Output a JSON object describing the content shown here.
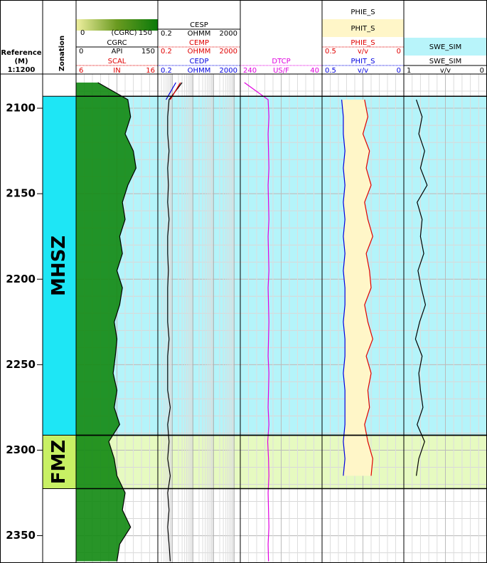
{
  "depth_header": {
    "reference": "Reference",
    "unit": "(M)",
    "scale": "1:1200"
  },
  "zonation_title": "Zonation",
  "depth_range": [
    2080,
    2366
  ],
  "depth_ticks": [
    2100,
    2150,
    2200,
    2250,
    2300,
    2350
  ],
  "zones": [
    {
      "name": "MHSZ",
      "top": 2093,
      "bottom": 2291.25,
      "color": "#1ee6f5",
      "light": "#b4f4fa"
    },
    {
      "name": "FMZ",
      "top": 2291.25,
      "bottom": 2322.5,
      "color": "#c8f064",
      "light": "#e6fac0"
    }
  ],
  "depths": [
    2085,
    2095,
    2105,
    2115,
    2125,
    2135,
    2145,
    2155,
    2165,
    2175,
    2185,
    2195,
    2205,
    2215,
    2225,
    2235,
    2245,
    2255,
    2265,
    2275,
    2285,
    2295,
    2305,
    2315,
    2325,
    2335,
    2345,
    2355,
    2365
  ],
  "tracks": [
    {
      "log": false,
      "colorbar": {
        "left": 0,
        "label": "(CGRC)",
        "right": 150
      },
      "fill_color": "#118811",
      "curves": [
        {
          "name": "CGRC",
          "left": 0,
          "unit": "API",
          "right": 150,
          "color": "#000000",
          "values": [
            40,
            95,
            100,
            90,
            105,
            110,
            95,
            85,
            90,
            80,
            85,
            75,
            85,
            80,
            70,
            75,
            72,
            68,
            75,
            70,
            80,
            60,
            70,
            75,
            90,
            85,
            100,
            80,
            75
          ]
        },
        {
          "name": "SCAL",
          "left": 6,
          "unit": "IN",
          "right": 16,
          "color": "#e00000"
        }
      ]
    },
    {
      "log": true,
      "curves": [
        {
          "name": "CESP",
          "left": 0.2,
          "unit": "OHMM",
          "right": 2000,
          "color": "#000000",
          "values": [
            3,
            0.7,
            0.6,
            0.6,
            0.7,
            0.6,
            0.65,
            0.6,
            0.7,
            0.6,
            0.6,
            0.65,
            0.6,
            0.6,
            0.6,
            0.7,
            0.6,
            0.6,
            0.6,
            0.8,
            0.6,
            0.7,
            0.6,
            0.8,
            0.6,
            0.7,
            0.6,
            0.7,
            0.8
          ]
        },
        {
          "name": "CEMP",
          "left": 0.2,
          "unit": "OHMM",
          "right": 2000,
          "color": "#e00000",
          "values": [
            2.5,
            0.8,
            null,
            null,
            null,
            null,
            null,
            null,
            null,
            null,
            null,
            null,
            null,
            null,
            null,
            null,
            null,
            null,
            null,
            null,
            null,
            null,
            null,
            null,
            null,
            null,
            null,
            null,
            null
          ]
        },
        {
          "name": "CEDP",
          "left": 0.2,
          "unit": "OHMM",
          "right": 2000,
          "color": "#0000e0",
          "values": [
            1.5,
            0.5,
            null,
            null,
            null,
            null,
            null,
            null,
            null,
            null,
            null,
            null,
            null,
            null,
            null,
            null,
            null,
            null,
            null,
            null,
            null,
            null,
            null,
            null,
            null,
            null,
            null,
            null,
            null
          ]
        }
      ]
    },
    {
      "log": false,
      "curves": [
        {
          "name": "DTCP",
          "left": 240,
          "unit": "US/F",
          "right": 40,
          "color": "#e000e0",
          "values": [
            230,
            172,
            170,
            172,
            171,
            170,
            172,
            171,
            170,
            172,
            171,
            170,
            172,
            171,
            170,
            171,
            172,
            170,
            171,
            172,
            170,
            173,
            171,
            170,
            172,
            171,
            170,
            172,
            171
          ]
        }
      ]
    },
    {
      "log": false,
      "legend": [
        "PHIE_S",
        "PHIT_S"
      ],
      "fill_color": "#fff6c8",
      "curves": [
        {
          "name": "PHIE_S",
          "left": 0.5,
          "unit": "v/v",
          "right": 0,
          "color": "#e00000",
          "values": [
            null,
            0.24,
            0.22,
            0.25,
            0.21,
            0.23,
            0.2,
            0.24,
            0.22,
            0.19,
            0.23,
            0.21,
            0.2,
            0.24,
            0.22,
            0.19,
            0.23,
            0.2,
            0.22,
            0.21,
            0.24,
            0.22,
            0.19,
            0.2,
            null,
            null,
            null,
            null,
            null
          ]
        },
        {
          "name": "PHIT_S",
          "left": 0.5,
          "unit": "v/v",
          "right": 0,
          "color": "#0000e0",
          "values": [
            null,
            0.38,
            0.37,
            0.37,
            0.36,
            0.37,
            0.36,
            0.37,
            0.36,
            0.37,
            0.36,
            0.37,
            0.36,
            0.36,
            0.37,
            0.36,
            0.36,
            0.37,
            0.36,
            0.36,
            0.36,
            0.37,
            0.36,
            0.37,
            null,
            null,
            null,
            null,
            null
          ]
        }
      ]
    },
    {
      "log": false,
      "legend": [
        "SWE_SIM"
      ],
      "fill_color": "#b8f4fa",
      "curves": [
        {
          "name": "SWE_SIM",
          "left": 1,
          "unit": "v/v",
          "right": 0,
          "color": "#000000",
          "values": [
            null,
            0.85,
            0.78,
            0.82,
            0.75,
            0.8,
            0.72,
            0.84,
            0.78,
            0.8,
            0.76,
            0.83,
            0.79,
            0.74,
            0.81,
            0.86,
            0.78,
            0.82,
            0.8,
            0.77,
            0.84,
            0.75,
            0.82,
            0.85,
            null,
            null,
            null,
            null,
            null
          ]
        }
      ]
    }
  ]
}
